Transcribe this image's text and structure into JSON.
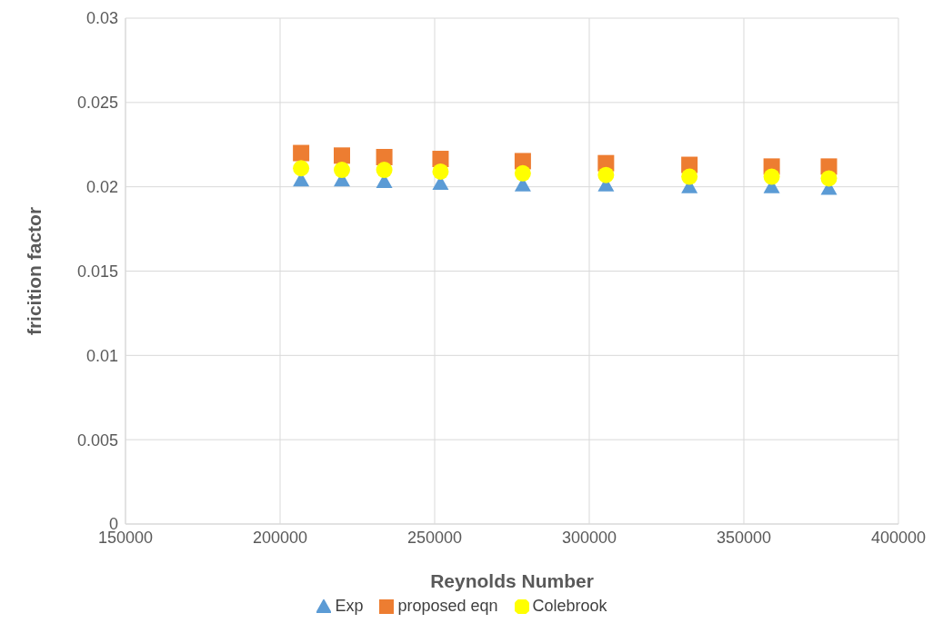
{
  "chart_data": {
    "type": "scatter",
    "xlabel": "Reynolds Number",
    "ylabel": "fricition factor",
    "x": [
      206800,
      220000,
      233700,
      251900,
      278500,
      305400,
      332400,
      359000,
      377500
    ],
    "series": [
      {
        "name": "Exp",
        "color": "#5b9bd5",
        "marker": "triangle",
        "values": [
          0.0204,
          0.0204,
          0.0203,
          0.0202,
          0.0201,
          0.0201,
          0.02,
          0.02,
          0.0199
        ]
      },
      {
        "name": "proposed eqn",
        "color": "#ed7d31",
        "marker": "square",
        "values": [
          0.022,
          0.02185,
          0.02176,
          0.02165,
          0.02152,
          0.0214,
          0.0213,
          0.0212,
          0.0212
        ]
      },
      {
        "name": "Colebrook",
        "color": "#ffff00",
        "marker": "circle",
        "values": [
          0.0211,
          0.021,
          0.021,
          0.0209,
          0.0208,
          0.0207,
          0.0206,
          0.0206,
          0.0205
        ]
      }
    ],
    "xlim": [
      150000,
      400000
    ],
    "xticks": [
      150000,
      200000,
      250000,
      300000,
      350000,
      400000
    ],
    "ylim": [
      0,
      0.03
    ],
    "yticks": [
      0,
      0.005,
      0.01,
      0.015,
      0.02,
      0.025,
      0.03
    ],
    "grid": true,
    "legend": "bottom"
  }
}
